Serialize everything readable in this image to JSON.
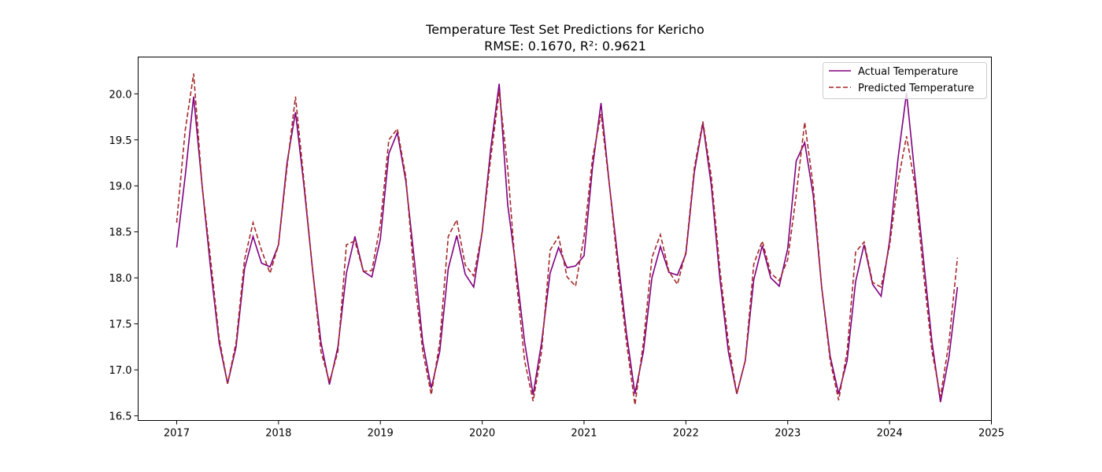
{
  "chart_data": {
    "type": "line",
    "title": "Temperature Test Set Predictions for Kericho",
    "subtitle": "RMSE: 0.1670, R²: 0.9621",
    "xlabel": "",
    "ylabel": "",
    "xlim": [
      "2016-08-15",
      "2025-01-01"
    ],
    "ylim": [
      16.45,
      20.4
    ],
    "x_ticks": [
      "2017",
      "2018",
      "2019",
      "2020",
      "2021",
      "2022",
      "2023",
      "2024",
      "2025"
    ],
    "y_ticks": [
      "16.5",
      "17.0",
      "17.5",
      "18.0",
      "18.5",
      "19.0",
      "19.5",
      "20.0"
    ],
    "grid": false,
    "legend_position": "top-right",
    "x": [
      "2017-01",
      "2017-02",
      "2017-03",
      "2017-04",
      "2017-05",
      "2017-06",
      "2017-07",
      "2017-08",
      "2017-09",
      "2017-10",
      "2017-11",
      "2017-12",
      "2018-01",
      "2018-02",
      "2018-03",
      "2018-04",
      "2018-05",
      "2018-06",
      "2018-07",
      "2018-08",
      "2018-09",
      "2018-10",
      "2018-11",
      "2018-12",
      "2019-01",
      "2019-02",
      "2019-03",
      "2019-04",
      "2019-05",
      "2019-06",
      "2019-07",
      "2019-08",
      "2019-09",
      "2019-10",
      "2019-11",
      "2019-12",
      "2020-01",
      "2020-02",
      "2020-03",
      "2020-04",
      "2020-05",
      "2020-06",
      "2020-07",
      "2020-08",
      "2020-09",
      "2020-10",
      "2020-11",
      "2020-12",
      "2021-01",
      "2021-02",
      "2021-03",
      "2021-04",
      "2021-05",
      "2021-06",
      "2021-07",
      "2021-08",
      "2021-09",
      "2021-10",
      "2021-11",
      "2021-12",
      "2022-01",
      "2022-02",
      "2022-03",
      "2022-04",
      "2022-05",
      "2022-06",
      "2022-07",
      "2022-08",
      "2022-09",
      "2022-10",
      "2022-11",
      "2022-12",
      "2023-01",
      "2023-02",
      "2023-03",
      "2023-04",
      "2023-05",
      "2023-06",
      "2023-07",
      "2023-08",
      "2023-09",
      "2023-10",
      "2023-11",
      "2023-12",
      "2024-01",
      "2024-02",
      "2024-03",
      "2024-04",
      "2024-05",
      "2024-06",
      "2024-07",
      "2024-08",
      "2024-09"
    ],
    "series": [
      {
        "name": "Actual Temperature",
        "color": "#800080",
        "style": "solid",
        "values": [
          18.33,
          19.1,
          19.97,
          19.0,
          18.1,
          17.3,
          16.85,
          17.25,
          18.1,
          18.45,
          18.16,
          18.12,
          18.36,
          19.25,
          19.8,
          19.0,
          18.1,
          17.3,
          16.84,
          17.25,
          18.05,
          18.45,
          18.07,
          18.01,
          18.42,
          19.35,
          19.58,
          19.05,
          18.2,
          17.3,
          16.8,
          17.2,
          18.1,
          18.46,
          18.04,
          17.9,
          18.5,
          19.4,
          20.11,
          18.8,
          18.1,
          17.3,
          16.73,
          17.3,
          18.05,
          18.33,
          18.11,
          18.13,
          18.24,
          19.2,
          19.9,
          19.0,
          18.2,
          17.4,
          16.74,
          17.2,
          18.0,
          18.34,
          18.06,
          18.03,
          18.26,
          19.15,
          19.68,
          19.0,
          18.0,
          17.2,
          16.74,
          17.1,
          17.98,
          18.35,
          18.0,
          17.91,
          18.32,
          19.27,
          19.47,
          18.9,
          17.9,
          17.15,
          16.74,
          17.1,
          17.96,
          18.36,
          17.93,
          17.8,
          18.4,
          19.3,
          20.01,
          19.1,
          18.2,
          17.3,
          16.65,
          17.14,
          17.9
        ]
      },
      {
        "name": "Predicted Temperature",
        "color": "#a52a2a",
        "style": "dashed",
        "values": [
          18.6,
          19.6,
          20.22,
          19.0,
          18.2,
          17.35,
          16.85,
          17.3,
          18.2,
          18.6,
          18.3,
          18.05,
          18.36,
          19.2,
          19.97,
          19.05,
          18.1,
          17.2,
          16.87,
          17.2,
          18.36,
          18.4,
          18.07,
          18.08,
          18.58,
          19.5,
          19.62,
          19.1,
          18.0,
          17.2,
          16.73,
          17.3,
          18.45,
          18.63,
          18.14,
          18.02,
          18.5,
          19.3,
          20.02,
          19.2,
          18.0,
          17.1,
          16.66,
          17.2,
          18.3,
          18.45,
          18.01,
          17.91,
          18.45,
          19.3,
          19.78,
          19.0,
          18.1,
          17.3,
          16.62,
          17.3,
          18.22,
          18.47,
          18.07,
          17.93,
          18.28,
          19.2,
          19.7,
          19.1,
          18.1,
          17.3,
          16.74,
          17.1,
          18.15,
          18.4,
          18.05,
          17.97,
          18.2,
          18.9,
          19.69,
          19.0,
          17.9,
          17.1,
          16.67,
          17.2,
          18.28,
          18.39,
          17.95,
          17.9,
          18.35,
          19.05,
          19.54,
          19.0,
          18.05,
          17.2,
          16.71,
          17.3,
          18.22
        ]
      }
    ]
  }
}
